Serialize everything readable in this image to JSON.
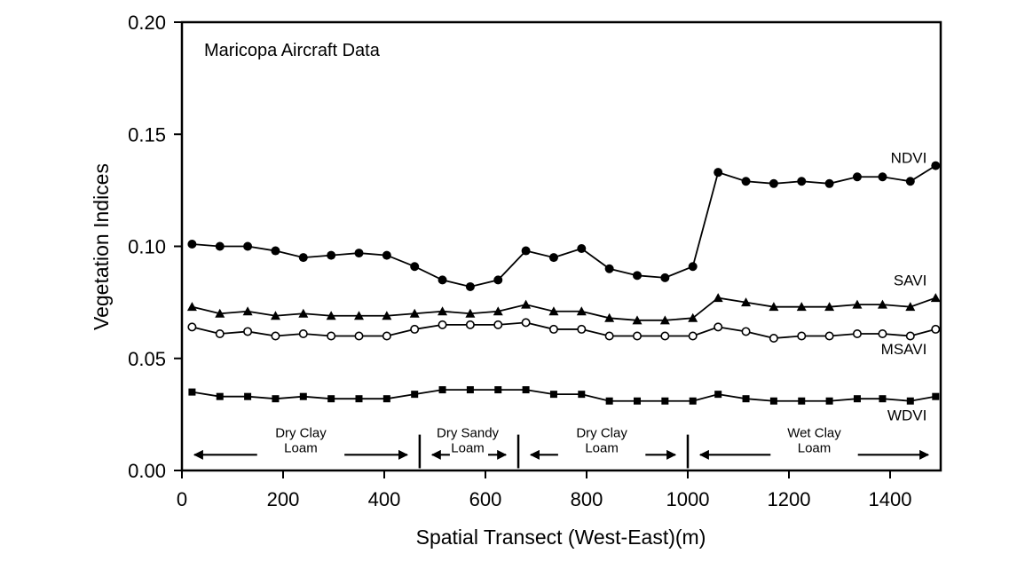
{
  "chart_data": {
    "type": "line",
    "title": "Maricopa Aircraft Data",
    "xlabel": "Spatial Transect (West-East)(m)",
    "ylabel": "Vegetation Indices",
    "xlim": [
      0,
      1500
    ],
    "ylim": [
      0,
      0.2
    ],
    "xticks": [
      0,
      200,
      400,
      600,
      800,
      1000,
      1200,
      1400
    ],
    "xtick_labels": [
      "0",
      "200",
      "400",
      "600",
      "800",
      "1000",
      "1200",
      "1400"
    ],
    "yticks": [
      0,
      0.05,
      0.1,
      0.15,
      0.2
    ],
    "ytick_labels": [
      "0.00",
      "0.05",
      "0.10",
      "0.15",
      "0.20"
    ],
    "grid": false,
    "x": [
      20,
      75,
      130,
      185,
      240,
      295,
      350,
      405,
      460,
      515,
      570,
      625,
      680,
      735,
      790,
      845,
      900,
      955,
      1010,
      1060,
      1115,
      1170,
      1225,
      1280,
      1335,
      1385,
      1440,
      1490
    ],
    "series": [
      {
        "name": "NDVI",
        "marker": "filled-circle",
        "values": [
          0.101,
          0.1,
          0.1,
          0.098,
          0.095,
          0.096,
          0.097,
          0.096,
          0.091,
          0.085,
          0.082,
          0.085,
          0.098,
          0.095,
          0.099,
          0.09,
          0.087,
          0.086,
          0.091,
          0.133,
          0.129,
          0.128,
          0.129,
          0.128,
          0.131,
          0.131,
          0.129,
          0.136
        ]
      },
      {
        "name": "SAVI",
        "marker": "filled-triangle",
        "values": [
          0.073,
          0.07,
          0.071,
          0.069,
          0.07,
          0.069,
          0.069,
          0.069,
          0.07,
          0.071,
          0.07,
          0.071,
          0.074,
          0.071,
          0.071,
          0.068,
          0.067,
          0.067,
          0.068,
          0.077,
          0.075,
          0.073,
          0.073,
          0.073,
          0.074,
          0.074,
          0.073,
          0.077
        ]
      },
      {
        "name": "MSAVI",
        "marker": "open-circle",
        "values": [
          0.064,
          0.061,
          0.062,
          0.06,
          0.061,
          0.06,
          0.06,
          0.06,
          0.063,
          0.065,
          0.065,
          0.065,
          0.066,
          0.063,
          0.063,
          0.06,
          0.06,
          0.06,
          0.06,
          0.064,
          0.062,
          0.059,
          0.06,
          0.06,
          0.061,
          0.061,
          0.06,
          0.063
        ]
      },
      {
        "name": "WDVI",
        "marker": "filled-square",
        "values": [
          0.035,
          0.033,
          0.033,
          0.032,
          0.033,
          0.032,
          0.032,
          0.032,
          0.034,
          0.036,
          0.036,
          0.036,
          0.036,
          0.034,
          0.034,
          0.031,
          0.031,
          0.031,
          0.031,
          0.034,
          0.032,
          0.031,
          0.031,
          0.031,
          0.032,
          0.032,
          0.031,
          0.033
        ]
      }
    ],
    "regions": [
      {
        "line1": "Dry Clay",
        "line2": "Loam",
        "start": 0,
        "end": 470,
        "label_x": 235
      },
      {
        "line1": "Dry Sandy",
        "line2": "Loam",
        "start": 470,
        "end": 665,
        "label_x": 565
      },
      {
        "line1": "Dry Clay",
        "line2": "Loam",
        "start": 665,
        "end": 1000,
        "label_x": 830
      },
      {
        "line1": "Wet Clay",
        "line2": "Loam",
        "start": 1000,
        "end": 1500,
        "label_x": 1250
      }
    ],
    "region_dividers": [
      470,
      665,
      1000
    ],
    "region_arrow_y": 0.007
  }
}
